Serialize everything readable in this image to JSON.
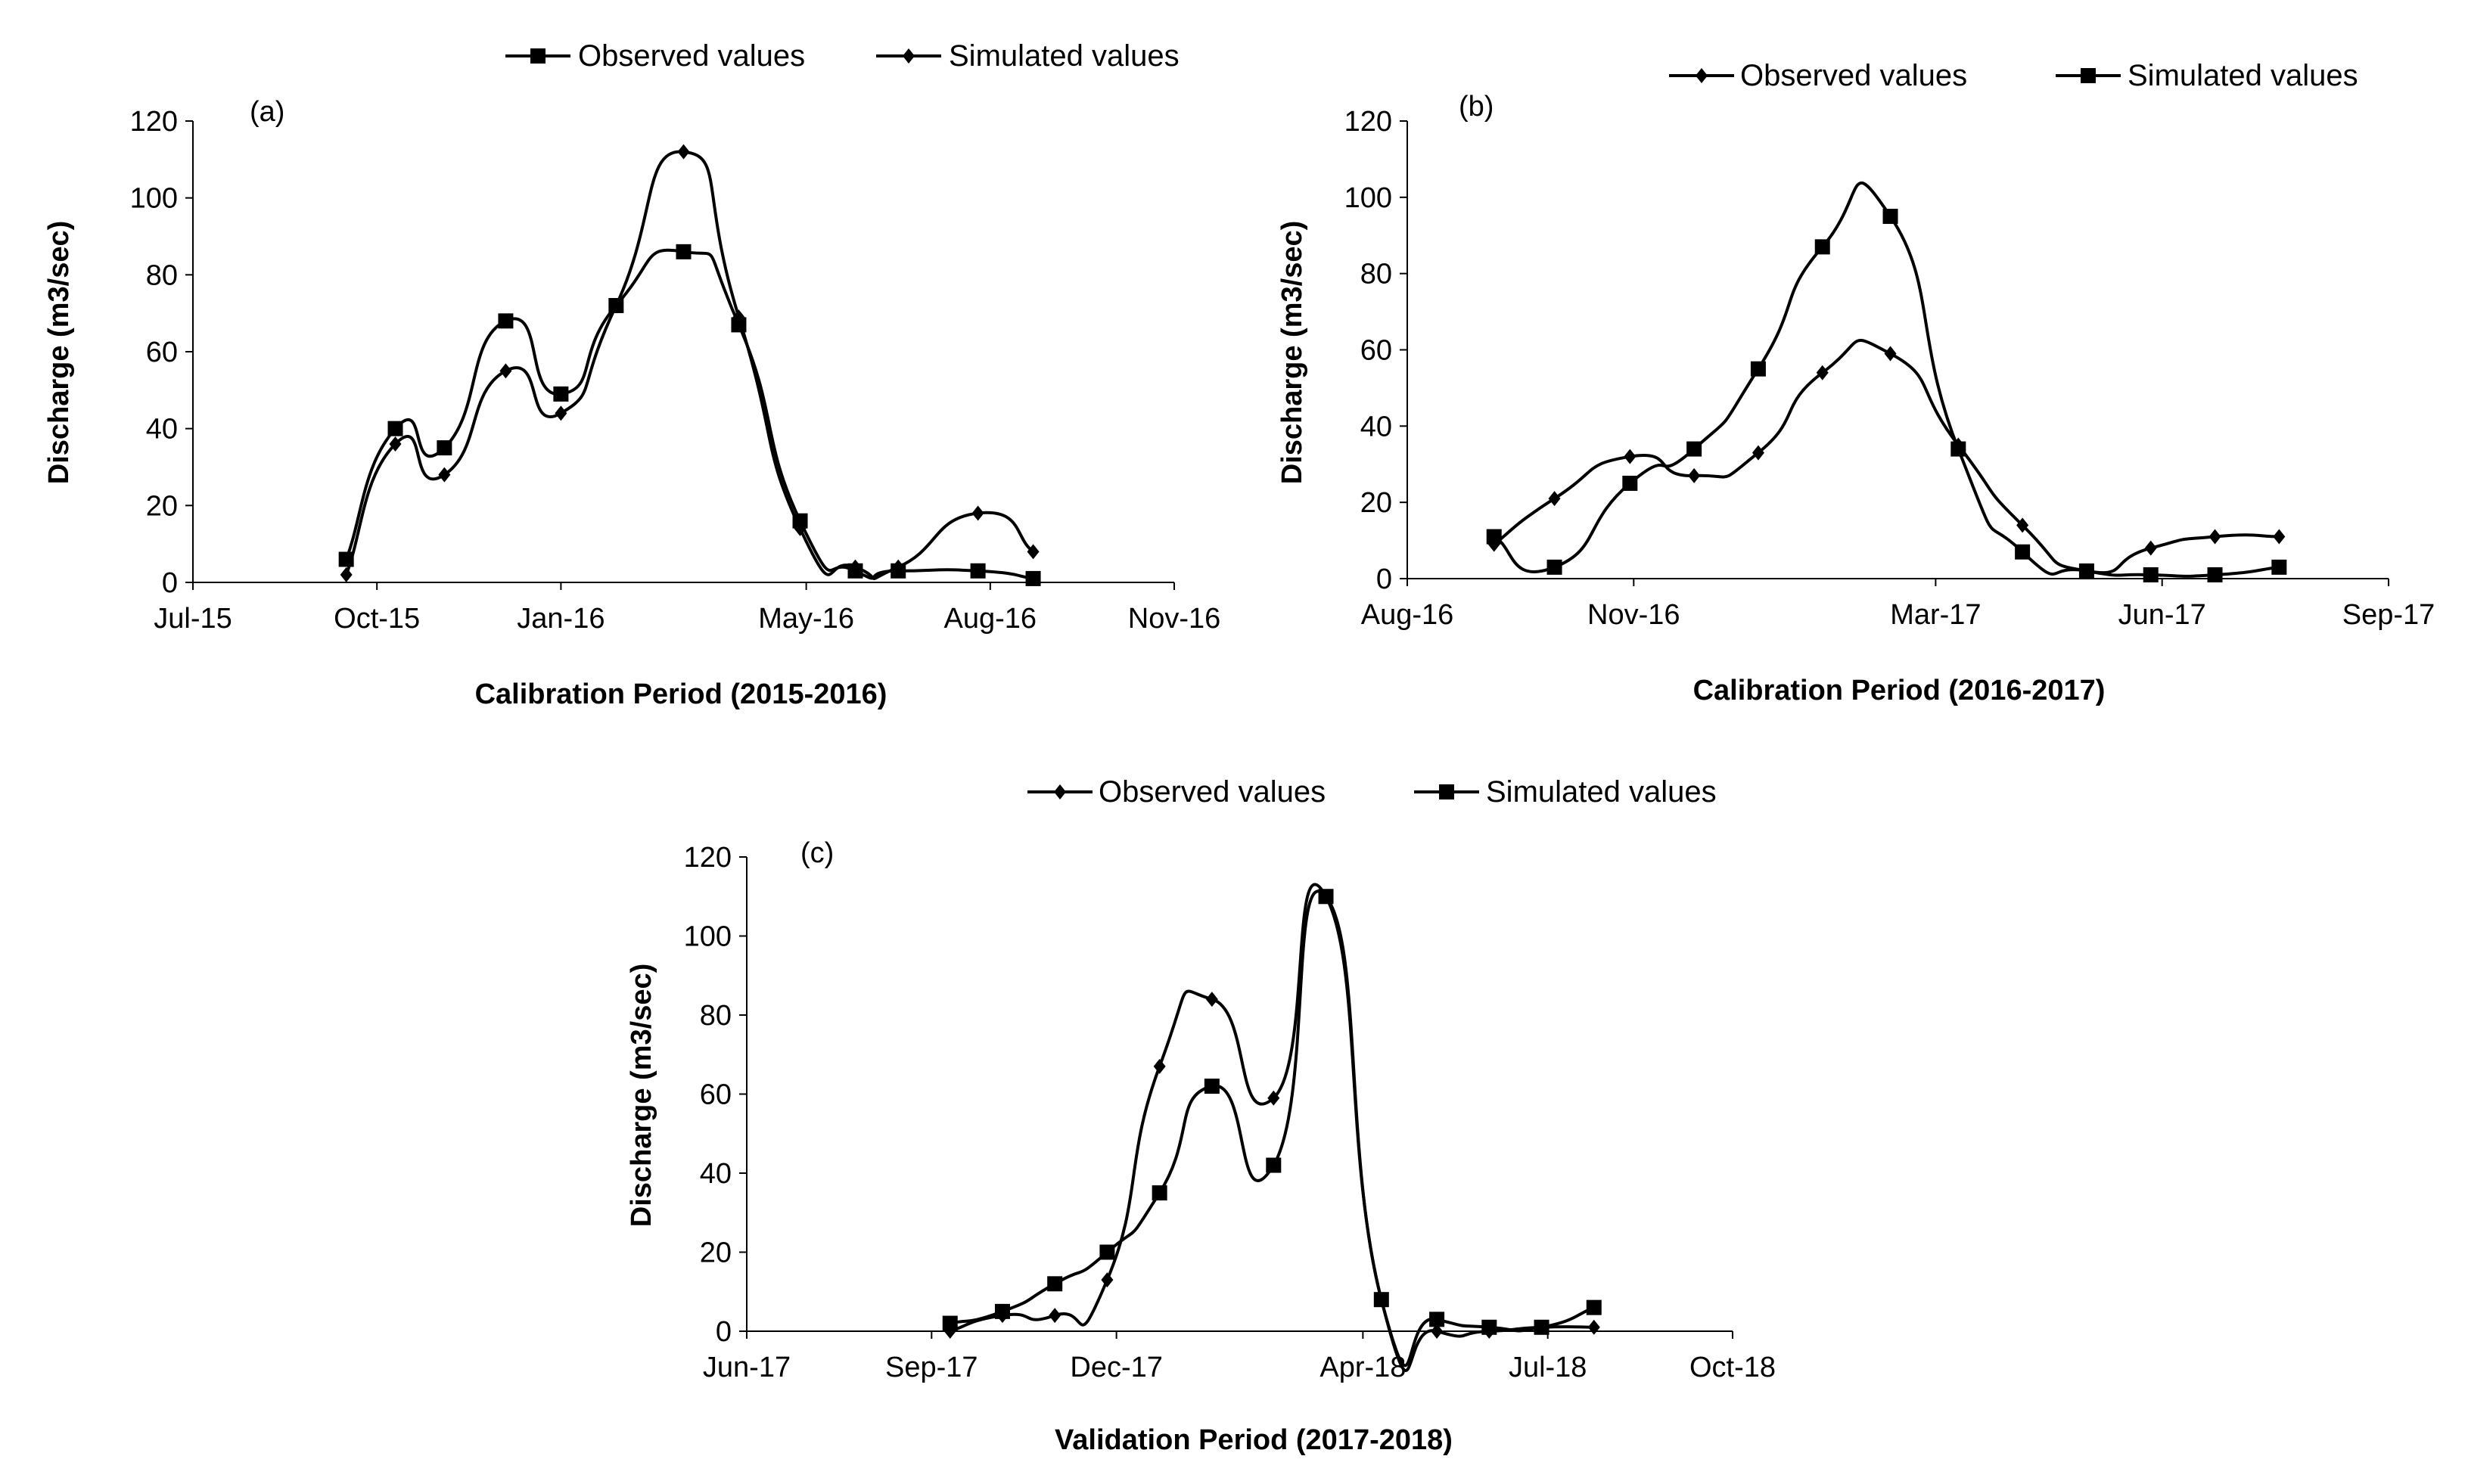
{
  "chart_data": [
    {
      "type": "line",
      "panel_label": "(a)",
      "xlabel": "Calibration Period (2015-2016)",
      "ylabel": "Discharge (m3/sec)",
      "ylim": [
        0,
        120
      ],
      "yticks": [
        "0",
        "20",
        "40",
        "60",
        "80",
        "100",
        "120"
      ],
      "xlim": [
        0,
        16
      ],
      "xticks": [
        {
          "label": "Jul-15",
          "pos": 0
        },
        {
          "label": "Oct-15",
          "pos": 3
        },
        {
          "label": "Jan-16",
          "pos": 6
        },
        {
          "label": "May-16",
          "pos": 10
        },
        {
          "label": "Aug-16",
          "pos": 13
        },
        {
          "label": "Nov-16",
          "pos": 16
        }
      ],
      "legend_position": "top-center",
      "series": [
        {
          "name": "Observed values",
          "marker": "square",
          "x": [
            2.5,
            3.3,
            4.1,
            5.1,
            6.0,
            6.9,
            8.0,
            8.9,
            9.9,
            10.8,
            11.5,
            12.8,
            13.7
          ],
          "y": [
            6,
            40,
            35,
            68,
            49,
            72,
            86,
            67,
            16,
            3,
            3,
            3,
            1
          ]
        },
        {
          "name": "Simulated values",
          "marker": "diamond",
          "x": [
            2.5,
            3.3,
            4.1,
            5.1,
            6.0,
            6.9,
            8.0,
            8.9,
            9.9,
            10.8,
            11.5,
            12.8,
            13.7
          ],
          "y": [
            2,
            36,
            28,
            55,
            44,
            72,
            112,
            69,
            14,
            4,
            4,
            18,
            8
          ]
        }
      ]
    },
    {
      "type": "line",
      "panel_label": "(b)",
      "xlabel": "Calibration Period (2016-2017)",
      "ylabel": "Discharge (m3/sec)",
      "ylim": [
        0,
        120
      ],
      "yticks": [
        "0",
        "20",
        "40",
        "60",
        "80",
        "100",
        "120"
      ],
      "xlim": [
        0,
        13
      ],
      "xticks": [
        {
          "label": "Aug-16",
          "pos": 0
        },
        {
          "label": "Nov-16",
          "pos": 3
        },
        {
          "label": "Mar-17",
          "pos": 7
        },
        {
          "label": "Jun-17",
          "pos": 10
        },
        {
          "label": "Sep-17",
          "pos": 13
        }
      ],
      "legend_position": "top-right",
      "series": [
        {
          "name": "Observed values",
          "marker": "diamond",
          "x": [
            1.15,
            1.95,
            2.95,
            3.8,
            4.65,
            5.5,
            6.4,
            7.3,
            8.15,
            9.0,
            9.85,
            10.7,
            11.55
          ],
          "y": [
            9,
            21,
            32,
            27,
            33,
            54,
            59,
            35,
            14,
            2,
            8,
            11,
            11
          ]
        },
        {
          "name": "Simulated values",
          "marker": "square",
          "x": [
            1.15,
            1.95,
            2.95,
            3.8,
            4.65,
            5.5,
            6.4,
            7.3,
            8.15,
            9.0,
            9.85,
            10.7,
            11.55
          ],
          "y": [
            11,
            3,
            25,
            34,
            55,
            87,
            95,
            34,
            7,
            2,
            1,
            1,
            3
          ]
        }
      ]
    },
    {
      "type": "line",
      "panel_label": "(c)",
      "xlabel": "Validation Period (2017-2018)",
      "ylabel": "Discharge (m3/sec)",
      "ylim": [
        0,
        120
      ],
      "yticks": [
        "0",
        "20",
        "40",
        "60",
        "80",
        "100",
        "120"
      ],
      "xlim": [
        0,
        16
      ],
      "xticks": [
        {
          "label": "Jun-17",
          "pos": 0
        },
        {
          "label": "Sep-17",
          "pos": 3
        },
        {
          "label": "Dec-17",
          "pos": 6
        },
        {
          "label": "Apr-18",
          "pos": 10
        },
        {
          "label": "Jul-18",
          "pos": 13
        },
        {
          "label": "Oct-18",
          "pos": 16
        }
      ],
      "legend_position": "top-center",
      "series": [
        {
          "name": "Observed values",
          "marker": "diamond",
          "x": [
            3.3,
            4.15,
            5.0,
            5.85,
            6.7,
            7.55,
            8.55,
            9.4,
            10.3,
            11.2,
            12.05,
            12.9,
            13.75
          ],
          "y": [
            0,
            4,
            4,
            13,
            67,
            84,
            59,
            110,
            8,
            0,
            0,
            1,
            1
          ]
        },
        {
          "name": "Simulated values",
          "marker": "square",
          "x": [
            3.3,
            4.15,
            5.0,
            5.85,
            6.7,
            7.55,
            8.55,
            9.4,
            10.3,
            11.2,
            12.05,
            12.9,
            13.75
          ],
          "y": [
            2,
            5,
            12,
            20,
            35,
            62,
            42,
            110,
            8,
            3,
            1,
            1,
            6
          ]
        }
      ]
    }
  ]
}
